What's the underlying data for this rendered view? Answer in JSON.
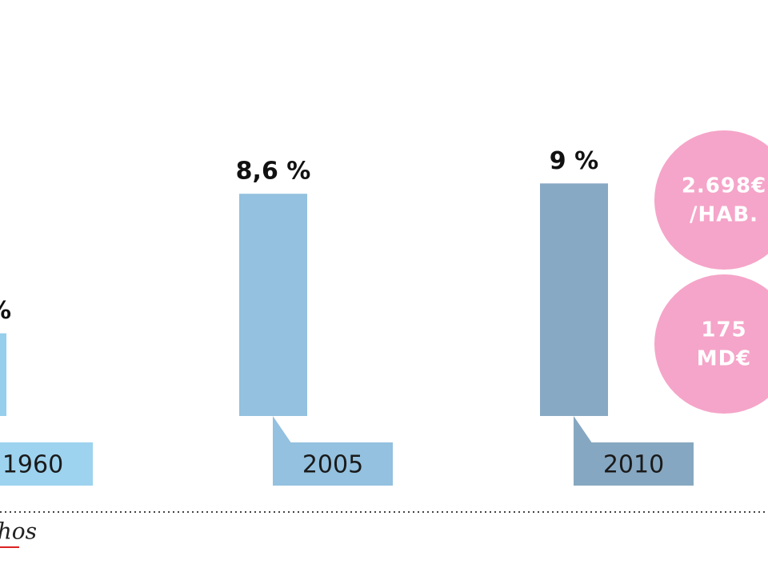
{
  "chart_data": {
    "type": "bar",
    "categories": [
      "1960",
      "2005",
      "2010"
    ],
    "values": [
      3.2,
      8.6,
      9
    ],
    "value_labels": [
      "%",
      "8,6 %",
      "9 %"
    ],
    "colors": [
      "#95cfec",
      "#93c1df",
      "#88a9c3"
    ],
    "label_box_colors": [
      "#9dd3ef",
      "#93c1df",
      "#86a7c1"
    ],
    "bubbles": [
      {
        "lines": [
          "2.698€",
          "/HAB."
        ],
        "color": "#f5a5c9"
      },
      {
        "lines": [
          "175",
          "MD€"
        ],
        "color": "#f5a5c9"
      }
    ],
    "logo": "hos"
  }
}
